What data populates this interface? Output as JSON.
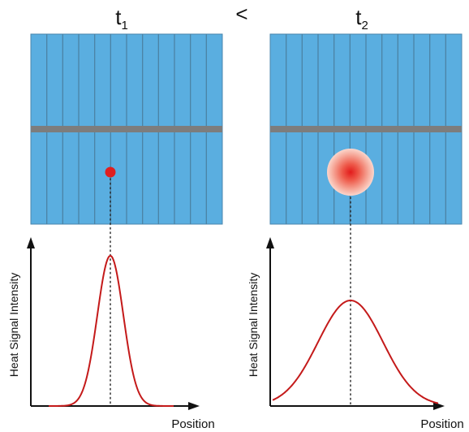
{
  "diagram": {
    "left_panel": {
      "time_label": "t",
      "time_subscript": "1",
      "y_axis_label": "Heat Signal Intensity",
      "x_axis_label": "Position"
    },
    "comparison_symbol": "<",
    "right_panel": {
      "time_label": "t",
      "time_subscript": "2",
      "y_axis_label": "Heat Signal Intensity",
      "x_axis_label": "Position"
    },
    "colors": {
      "tissue_blue": "#5aaee0",
      "stripe": "#4a7fa0",
      "band": "#7d7d7d",
      "heat_red": "#e01f1f",
      "curve_red": "#c41a1a",
      "axis": "#111111"
    }
  }
}
